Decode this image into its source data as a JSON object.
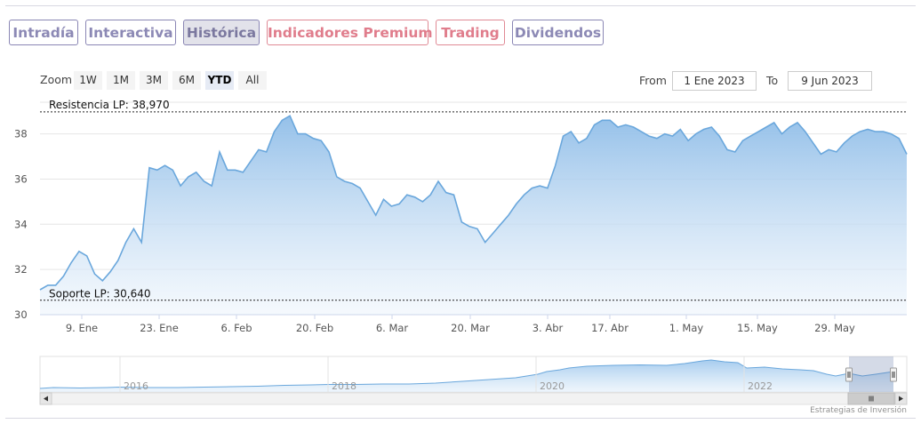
{
  "tabs": [
    {
      "label": "Intradía",
      "state": "normal"
    },
    {
      "label": "Interactiva",
      "state": "normal"
    },
    {
      "label": "Histórica",
      "state": "active"
    },
    {
      "label": "Indicadores Premium",
      "state": "premium"
    },
    {
      "label": "Trading",
      "state": "premium"
    },
    {
      "label": "Dividendos",
      "state": "normal"
    }
  ],
  "range_selector": {
    "zoom_label": "Zoom",
    "buttons": [
      "1W",
      "1M",
      "3M",
      "6M",
      "YTD",
      "All"
    ],
    "selected": "YTD",
    "from_label": "From",
    "from_value": "1 Ene 2023",
    "to_label": "To",
    "to_value": "9 Jun 2023"
  },
  "colors": {
    "tab_border": "#8a86b4",
    "tab_text": "#8c89b5",
    "premium": "#e07d8c",
    "series_line": "#6aa7dc",
    "series_fill_top": "#8fbde8",
    "series_fill_bottom": "#eef5fc"
  },
  "chart_data": {
    "type": "area",
    "x_ticks": [
      "9. Ene",
      "23. Ene",
      "6. Feb",
      "20. Feb",
      "6. Mar",
      "20. Mar",
      "3. Abr",
      "17. Abr",
      "1. May",
      "15. May",
      "29. May"
    ],
    "y_ticks": [
      30,
      32,
      34,
      36,
      38
    ],
    "ylim": [
      30,
      39.4
    ],
    "grid": true,
    "plot_lines": [
      {
        "label": "Resistencia LP: 38,970",
        "value": 38.97
      },
      {
        "label": "Soporte LP: 30,640",
        "value": 30.64
      }
    ],
    "series": [
      {
        "x": [
          "2023-01-02",
          "2023-01-03",
          "2023-01-04",
          "2023-01-05",
          "2023-01-06",
          "2023-01-09",
          "2023-01-10",
          "2023-01-11",
          "2023-01-12",
          "2023-01-13",
          "2023-01-16",
          "2023-01-17",
          "2023-01-18",
          "2023-01-19",
          "2023-01-20",
          "2023-01-23",
          "2023-01-24",
          "2023-01-25",
          "2023-01-26",
          "2023-01-27",
          "2023-01-30",
          "2023-01-31",
          "2023-02-01",
          "2023-02-02",
          "2023-02-03",
          "2023-02-06",
          "2023-02-07",
          "2023-02-08",
          "2023-02-09",
          "2023-02-10",
          "2023-02-13",
          "2023-02-14",
          "2023-02-15",
          "2023-02-16",
          "2023-02-17",
          "2023-02-20",
          "2023-02-21",
          "2023-02-22",
          "2023-02-23",
          "2023-02-24",
          "2023-02-27",
          "2023-02-28",
          "2023-03-01",
          "2023-03-02",
          "2023-03-03",
          "2023-03-06",
          "2023-03-07",
          "2023-03-08",
          "2023-03-09",
          "2023-03-10",
          "2023-03-13",
          "2023-03-14",
          "2023-03-15",
          "2023-03-16",
          "2023-03-17",
          "2023-03-20",
          "2023-03-21",
          "2023-03-22",
          "2023-03-23",
          "2023-03-24",
          "2023-03-27",
          "2023-03-28",
          "2023-03-29",
          "2023-03-30",
          "2023-03-31",
          "2023-04-03",
          "2023-04-04",
          "2023-04-05",
          "2023-04-06",
          "2023-04-11",
          "2023-04-12",
          "2023-04-13",
          "2023-04-14",
          "2023-04-17",
          "2023-04-18",
          "2023-04-19",
          "2023-04-20",
          "2023-04-21",
          "2023-04-24",
          "2023-04-25",
          "2023-04-26",
          "2023-04-27",
          "2023-04-28",
          "2023-05-02",
          "2023-05-03",
          "2023-05-04",
          "2023-05-05",
          "2023-05-08",
          "2023-05-09",
          "2023-05-10",
          "2023-05-11",
          "2023-05-12",
          "2023-05-15",
          "2023-05-16",
          "2023-05-17",
          "2023-05-18",
          "2023-05-19",
          "2023-05-22",
          "2023-05-23",
          "2023-05-24",
          "2023-05-25",
          "2023-05-26",
          "2023-05-29",
          "2023-05-30",
          "2023-05-31",
          "2023-06-01",
          "2023-06-02",
          "2023-06-05",
          "2023-06-06",
          "2023-06-07",
          "2023-06-08",
          "2023-06-09"
        ],
        "y": [
          31.1,
          31.3,
          31.3,
          31.7,
          32.3,
          32.8,
          32.6,
          31.8,
          31.5,
          31.9,
          32.4,
          33.2,
          33.8,
          33.2,
          36.5,
          36.4,
          36.6,
          36.4,
          35.7,
          36.1,
          36.3,
          35.9,
          35.7,
          37.2,
          36.4,
          36.4,
          36.3,
          36.8,
          37.3,
          37.2,
          38.1,
          38.6,
          38.8,
          38.0,
          38.0,
          37.8,
          37.7,
          37.2,
          36.1,
          35.9,
          35.8,
          35.6,
          35.0,
          34.4,
          35.1,
          34.8,
          34.9,
          35.3,
          35.2,
          35.0,
          35.3,
          35.9,
          35.4,
          35.3,
          34.1,
          33.9,
          33.8,
          33.2,
          33.6,
          34.0,
          34.4,
          34.9,
          35.3,
          35.6,
          35.7,
          35.6,
          36.6,
          37.9,
          38.1,
          37.6,
          37.8,
          38.4,
          38.6,
          38.6,
          38.3,
          38.4,
          38.3,
          38.1,
          37.9,
          37.8,
          38.0,
          37.9,
          38.2,
          37.7,
          38.0,
          38.2,
          38.3,
          37.9,
          37.3,
          37.2,
          37.7,
          37.9,
          38.1,
          38.3,
          38.5,
          38.0,
          38.3,
          38.5,
          38.1,
          37.6,
          37.1,
          37.3,
          37.2,
          37.6,
          37.9,
          38.1,
          38.2,
          38.1,
          38.1,
          38.0,
          37.8,
          37.1
        ]
      }
    ],
    "navigator": {
      "year_labels": [
        "2016",
        "2018",
        "2020",
        "2022"
      ]
    }
  },
  "credits": "Estrategias de Inversión"
}
